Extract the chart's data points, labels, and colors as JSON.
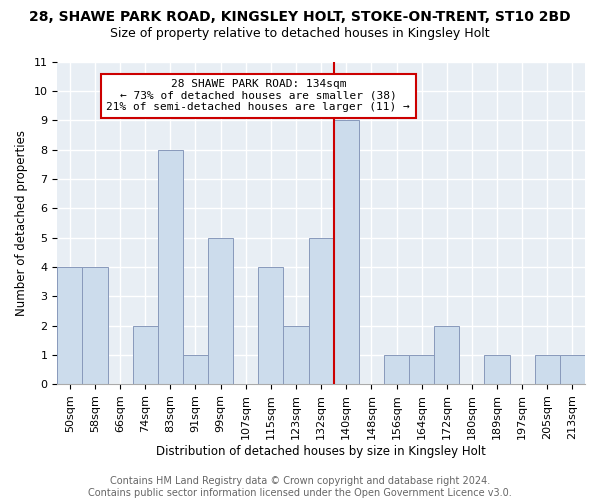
{
  "title": "28, SHAWE PARK ROAD, KINGSLEY HOLT, STOKE-ON-TRENT, ST10 2BD",
  "subtitle": "Size of property relative to detached houses in Kingsley Holt",
  "xlabel": "Distribution of detached houses by size in Kingsley Holt",
  "ylabel": "Number of detached properties",
  "bins": [
    "50sqm",
    "58sqm",
    "66sqm",
    "74sqm",
    "83sqm",
    "91sqm",
    "99sqm",
    "107sqm",
    "115sqm",
    "123sqm",
    "132sqm",
    "140sqm",
    "148sqm",
    "156sqm",
    "164sqm",
    "172sqm",
    "180sqm",
    "189sqm",
    "197sqm",
    "205sqm",
    "213sqm"
  ],
  "counts": [
    4,
    4,
    0,
    2,
    8,
    1,
    5,
    0,
    4,
    2,
    5,
    9,
    0,
    1,
    1,
    2,
    0,
    1,
    0,
    1,
    1
  ],
  "bar_color": "#ccdcec",
  "bar_edge_color": "#8899bb",
  "highlight_line_color": "#cc0000",
  "annotation_title": "28 SHAWE PARK ROAD: 134sqm",
  "annotation_line1": "← 73% of detached houses are smaller (38)",
  "annotation_line2": "21% of semi-detached houses are larger (11) →",
  "annotation_box_color": "#ffffff",
  "annotation_box_edge_color": "#cc0000",
  "ylim": [
    0,
    11
  ],
  "yticks": [
    0,
    1,
    2,
    3,
    4,
    5,
    6,
    7,
    8,
    9,
    10,
    11
  ],
  "footer1": "Contains HM Land Registry data © Crown copyright and database right 2024.",
  "footer2": "Contains public sector information licensed under the Open Government Licence v3.0.",
  "title_fontsize": 10,
  "subtitle_fontsize": 9,
  "axis_label_fontsize": 8.5,
  "tick_fontsize": 8,
  "annotation_fontsize": 8,
  "footer_fontsize": 7,
  "bg_color": "#e8eef4"
}
